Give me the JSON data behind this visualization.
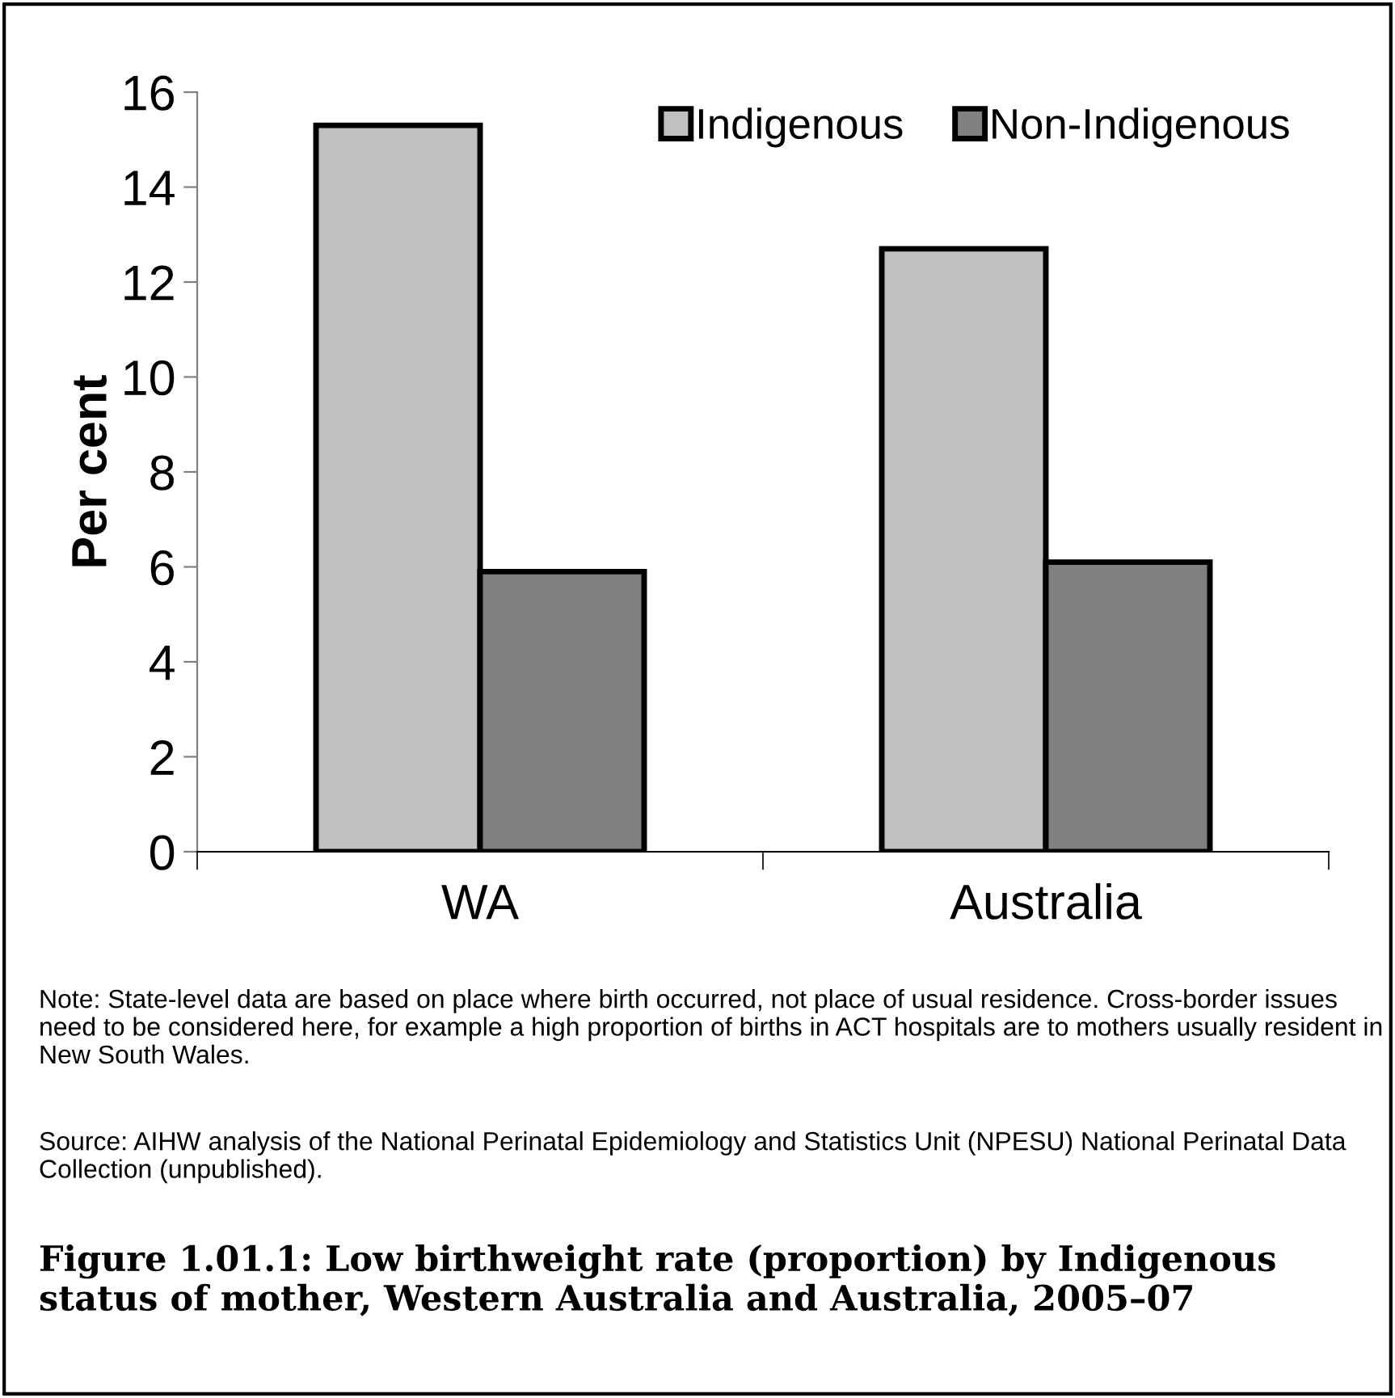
{
  "chart_data": {
    "type": "bar",
    "title": "Figure 1.01.1: Low birthweight rate (proportion) by Indigenous status of mother, Western Australia and Australia, 2005–07",
    "ylabel": "Per cent",
    "categories": [
      "WA",
      "Australia"
    ],
    "series": [
      {
        "name": "Indigenous",
        "color": "#c0c0c0",
        "values": [
          15.3,
          12.7
        ]
      },
      {
        "name": "Non-Indigenous",
        "color": "#808080",
        "values": [
          5.9,
          6.1
        ]
      }
    ],
    "ylim": [
      0,
      16
    ],
    "yticks": [
      0,
      2,
      4,
      6,
      8,
      10,
      12,
      14,
      16
    ],
    "grid": false,
    "legend": "top right",
    "annotations": [
      "Note: State-level data are based on place where birth occurred, not place of usual residence. Cross-border issues need to be considered here, for example a high proportion of births in ACT hospitals are to mothers usually resident in New South Wales.",
      "Source: AIHW analysis of the National Perinatal Epidemiology and Statistics Unit (NPESU) National Perinatal Data Collection (unpublished)."
    ]
  }
}
